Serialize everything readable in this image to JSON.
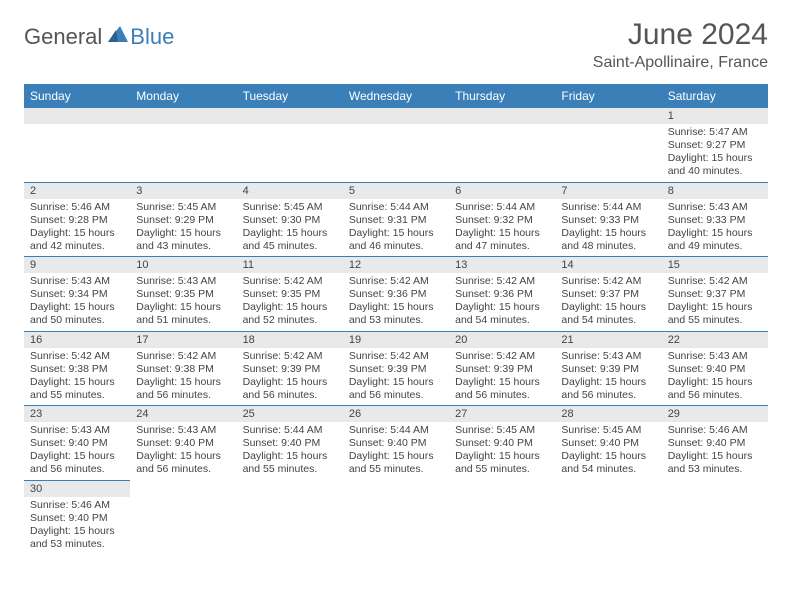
{
  "logo": {
    "text_general": "General",
    "text_blue": "Blue"
  },
  "title": "June 2024",
  "location": "Saint-Apollinaire, France",
  "colors": {
    "header_bg": "#3a7fb8",
    "header_text": "#ffffff",
    "daynum_bg": "#e9e9e9",
    "border": "#3a7fb8",
    "text": "#444444"
  },
  "day_headers": [
    "Sunday",
    "Monday",
    "Tuesday",
    "Wednesday",
    "Thursday",
    "Friday",
    "Saturday"
  ],
  "weeks": [
    [
      null,
      null,
      null,
      null,
      null,
      null,
      {
        "n": "1",
        "sr": "Sunrise: 5:47 AM",
        "ss": "Sunset: 9:27 PM",
        "dl": "Daylight: 15 hours and 40 minutes."
      }
    ],
    [
      {
        "n": "2",
        "sr": "Sunrise: 5:46 AM",
        "ss": "Sunset: 9:28 PM",
        "dl": "Daylight: 15 hours and 42 minutes."
      },
      {
        "n": "3",
        "sr": "Sunrise: 5:45 AM",
        "ss": "Sunset: 9:29 PM",
        "dl": "Daylight: 15 hours and 43 minutes."
      },
      {
        "n": "4",
        "sr": "Sunrise: 5:45 AM",
        "ss": "Sunset: 9:30 PM",
        "dl": "Daylight: 15 hours and 45 minutes."
      },
      {
        "n": "5",
        "sr": "Sunrise: 5:44 AM",
        "ss": "Sunset: 9:31 PM",
        "dl": "Daylight: 15 hours and 46 minutes."
      },
      {
        "n": "6",
        "sr": "Sunrise: 5:44 AM",
        "ss": "Sunset: 9:32 PM",
        "dl": "Daylight: 15 hours and 47 minutes."
      },
      {
        "n": "7",
        "sr": "Sunrise: 5:44 AM",
        "ss": "Sunset: 9:33 PM",
        "dl": "Daylight: 15 hours and 48 minutes."
      },
      {
        "n": "8",
        "sr": "Sunrise: 5:43 AM",
        "ss": "Sunset: 9:33 PM",
        "dl": "Daylight: 15 hours and 49 minutes."
      }
    ],
    [
      {
        "n": "9",
        "sr": "Sunrise: 5:43 AM",
        "ss": "Sunset: 9:34 PM",
        "dl": "Daylight: 15 hours and 50 minutes."
      },
      {
        "n": "10",
        "sr": "Sunrise: 5:43 AM",
        "ss": "Sunset: 9:35 PM",
        "dl": "Daylight: 15 hours and 51 minutes."
      },
      {
        "n": "11",
        "sr": "Sunrise: 5:42 AM",
        "ss": "Sunset: 9:35 PM",
        "dl": "Daylight: 15 hours and 52 minutes."
      },
      {
        "n": "12",
        "sr": "Sunrise: 5:42 AM",
        "ss": "Sunset: 9:36 PM",
        "dl": "Daylight: 15 hours and 53 minutes."
      },
      {
        "n": "13",
        "sr": "Sunrise: 5:42 AM",
        "ss": "Sunset: 9:36 PM",
        "dl": "Daylight: 15 hours and 54 minutes."
      },
      {
        "n": "14",
        "sr": "Sunrise: 5:42 AM",
        "ss": "Sunset: 9:37 PM",
        "dl": "Daylight: 15 hours and 54 minutes."
      },
      {
        "n": "15",
        "sr": "Sunrise: 5:42 AM",
        "ss": "Sunset: 9:37 PM",
        "dl": "Daylight: 15 hours and 55 minutes."
      }
    ],
    [
      {
        "n": "16",
        "sr": "Sunrise: 5:42 AM",
        "ss": "Sunset: 9:38 PM",
        "dl": "Daylight: 15 hours and 55 minutes."
      },
      {
        "n": "17",
        "sr": "Sunrise: 5:42 AM",
        "ss": "Sunset: 9:38 PM",
        "dl": "Daylight: 15 hours and 56 minutes."
      },
      {
        "n": "18",
        "sr": "Sunrise: 5:42 AM",
        "ss": "Sunset: 9:39 PM",
        "dl": "Daylight: 15 hours and 56 minutes."
      },
      {
        "n": "19",
        "sr": "Sunrise: 5:42 AM",
        "ss": "Sunset: 9:39 PM",
        "dl": "Daylight: 15 hours and 56 minutes."
      },
      {
        "n": "20",
        "sr": "Sunrise: 5:42 AM",
        "ss": "Sunset: 9:39 PM",
        "dl": "Daylight: 15 hours and 56 minutes."
      },
      {
        "n": "21",
        "sr": "Sunrise: 5:43 AM",
        "ss": "Sunset: 9:39 PM",
        "dl": "Daylight: 15 hours and 56 minutes."
      },
      {
        "n": "22",
        "sr": "Sunrise: 5:43 AM",
        "ss": "Sunset: 9:40 PM",
        "dl": "Daylight: 15 hours and 56 minutes."
      }
    ],
    [
      {
        "n": "23",
        "sr": "Sunrise: 5:43 AM",
        "ss": "Sunset: 9:40 PM",
        "dl": "Daylight: 15 hours and 56 minutes."
      },
      {
        "n": "24",
        "sr": "Sunrise: 5:43 AM",
        "ss": "Sunset: 9:40 PM",
        "dl": "Daylight: 15 hours and 56 minutes."
      },
      {
        "n": "25",
        "sr": "Sunrise: 5:44 AM",
        "ss": "Sunset: 9:40 PM",
        "dl": "Daylight: 15 hours and 55 minutes."
      },
      {
        "n": "26",
        "sr": "Sunrise: 5:44 AM",
        "ss": "Sunset: 9:40 PM",
        "dl": "Daylight: 15 hours and 55 minutes."
      },
      {
        "n": "27",
        "sr": "Sunrise: 5:45 AM",
        "ss": "Sunset: 9:40 PM",
        "dl": "Daylight: 15 hours and 55 minutes."
      },
      {
        "n": "28",
        "sr": "Sunrise: 5:45 AM",
        "ss": "Sunset: 9:40 PM",
        "dl": "Daylight: 15 hours and 54 minutes."
      },
      {
        "n": "29",
        "sr": "Sunrise: 5:46 AM",
        "ss": "Sunset: 9:40 PM",
        "dl": "Daylight: 15 hours and 53 minutes."
      }
    ],
    [
      {
        "n": "30",
        "sr": "Sunrise: 5:46 AM",
        "ss": "Sunset: 9:40 PM",
        "dl": "Daylight: 15 hours and 53 minutes."
      },
      null,
      null,
      null,
      null,
      null,
      null
    ]
  ]
}
